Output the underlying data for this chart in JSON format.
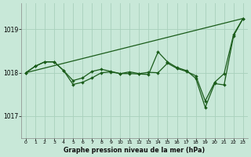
{
  "title": "Graphe pression niveau de la mer (hPa)",
  "bg_color": "#c8e8d8",
  "grid_color": "#a8d0bc",
  "line_color": "#1a5c1a",
  "xlim": [
    -0.5,
    23.5
  ],
  "ylim": [
    1016.5,
    1019.6
  ],
  "x_ticks": [
    0,
    1,
    2,
    3,
    4,
    5,
    6,
    7,
    8,
    9,
    10,
    11,
    12,
    13,
    14,
    15,
    16,
    17,
    18,
    19,
    20,
    21,
    22,
    23
  ],
  "y_ticks": [
    1017,
    1018,
    1019
  ],
  "series": [
    {
      "y": [
        1018.0,
        null,
        null,
        null,
        null,
        null,
        null,
        null,
        null,
        null,
        null,
        null,
        null,
        null,
        null,
        null,
        null,
        null,
        null,
        null,
        null,
        null,
        null,
        1019.25
      ],
      "has_markers": false,
      "linewidth": 0.9
    },
    {
      "y": [
        1018.0,
        1018.15,
        1018.25,
        1018.25,
        1018.05,
        1017.73,
        1017.78,
        1017.88,
        1018.0,
        1018.02,
        1017.98,
        1017.98,
        1017.97,
        1017.96,
        1018.48,
        1018.25,
        1018.12,
        1018.05,
        1017.87,
        1017.2,
        1017.75,
        1017.72,
        1018.85,
        1019.25
      ],
      "has_markers": true,
      "linewidth": 0.9
    },
    {
      "y": [
        1018.0,
        1018.15,
        1018.25,
        1018.25,
        1018.05,
        1017.82,
        1017.88,
        1018.03,
        1018.08,
        1018.03,
        1017.98,
        1018.02,
        1017.98,
        1018.01,
        1018.0,
        1018.22,
        1018.1,
        1018.03,
        1017.93,
        1017.35,
        1017.78,
        1017.98,
        1018.88,
        1019.25
      ],
      "has_markers": true,
      "linewidth": 0.9
    }
  ]
}
